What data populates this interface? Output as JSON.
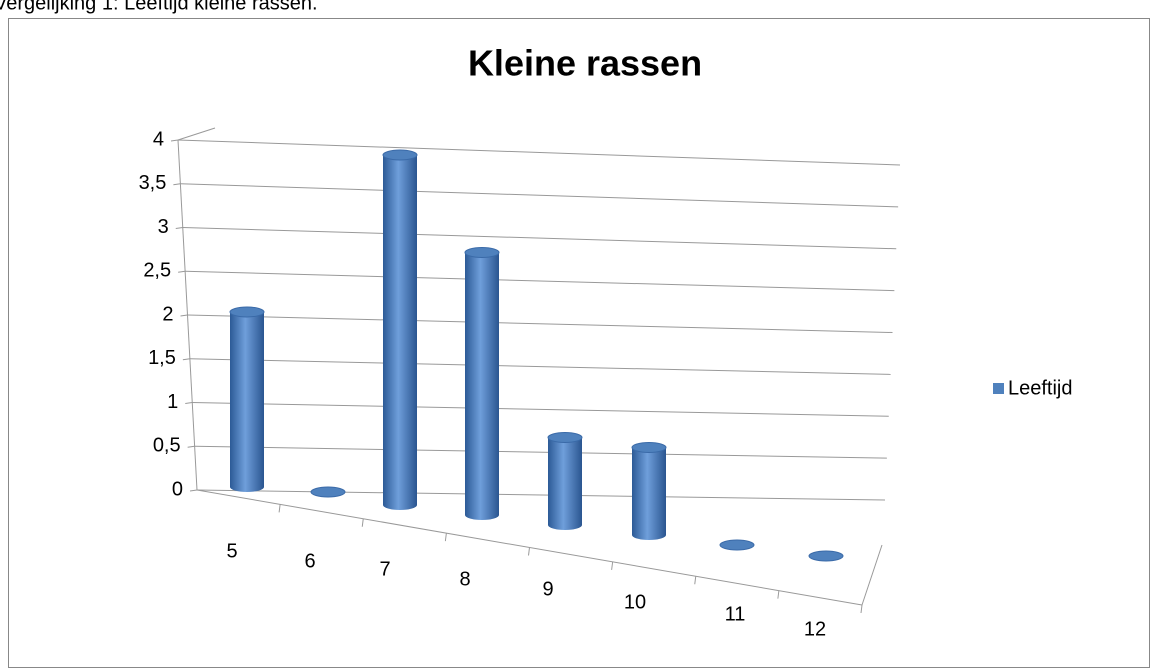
{
  "caption": "Vergelijking 1: Leeftijd kleine rassen.",
  "chart_data": {
    "type": "bar3d",
    "title": "Kleine rassen",
    "categories": [
      "5",
      "6",
      "7",
      "8",
      "9",
      "10",
      "11",
      "12"
    ],
    "series": [
      {
        "name": "Leeftijd",
        "color": "#4f81bd",
        "values": [
          2,
          0,
          4,
          3,
          1,
          1,
          0,
          0
        ]
      }
    ],
    "ylim": [
      0,
      4
    ],
    "yticks": [
      0,
      {
        "value": 0.5,
        "label": "0,5"
      },
      1,
      {
        "value": 1.5,
        "label": "1,5"
      },
      2,
      {
        "value": 2.5,
        "label": "2,5"
      },
      3,
      {
        "value": 3.5,
        "label": "3,5"
      },
      4
    ],
    "grid": true,
    "legend": "right"
  }
}
